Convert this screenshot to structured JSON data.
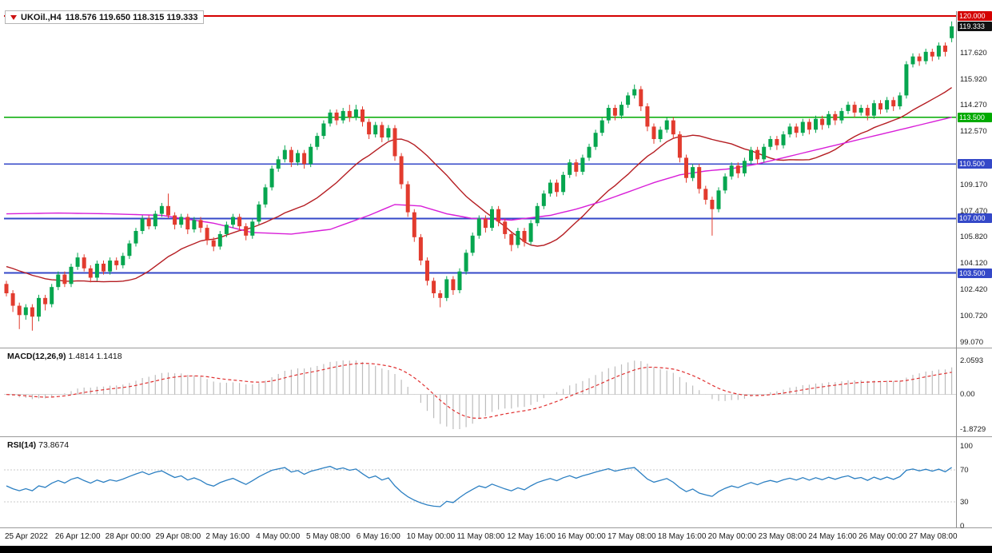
{
  "header": {
    "symbol_timeframe": "UKOil.,H4",
    "ohlc_text": "118.576 119.650 118.315 119.333"
  },
  "chart_data": {
    "type": "candlestick",
    "symbol": "UKOil.",
    "timeframe": "H4",
    "current_ohlc": {
      "open": 118.576,
      "high": 119.65,
      "low": 118.315,
      "close": 119.333
    },
    "colors": {
      "up": "#06a64f",
      "down": "#e23b2e",
      "ma_fast": "#b51d22",
      "ma_slow": "#d81ed8",
      "macd_hist": "#bdbdbd",
      "macd_signal": "#e03030",
      "rsi": "#2b7fc2",
      "level_red": "#d40000",
      "level_green": "#00aa00",
      "level_blue": "#3448c8",
      "current_tag": "#111111"
    },
    "candles": [
      [
        102.8,
        103.0,
        102.0,
        102.2
      ],
      [
        102.2,
        102.4,
        101.0,
        101.4
      ],
      [
        101.4,
        101.6,
        99.9,
        100.8
      ],
      [
        100.8,
        101.5,
        100.5,
        101.3
      ],
      [
        101.3,
        101.5,
        99.8,
        100.7
      ],
      [
        100.7,
        102.1,
        100.4,
        101.9
      ],
      [
        101.9,
        102.1,
        101.1,
        101.5
      ],
      [
        101.5,
        102.8,
        101.3,
        102.6
      ],
      [
        102.6,
        103.6,
        102.4,
        103.4
      ],
      [
        103.4,
        103.6,
        102.6,
        102.8
      ],
      [
        102.8,
        104.1,
        102.6,
        103.9
      ],
      [
        103.9,
        104.8,
        103.7,
        104.5
      ],
      [
        104.5,
        104.7,
        103.6,
        103.8
      ],
      [
        103.8,
        104.0,
        102.9,
        103.2
      ],
      [
        103.2,
        104.3,
        103.0,
        104.1
      ],
      [
        104.1,
        104.3,
        103.4,
        103.6
      ],
      [
        103.6,
        104.5,
        103.4,
        104.3
      ],
      [
        104.3,
        104.5,
        103.7,
        104.0
      ],
      [
        104.0,
        104.8,
        103.8,
        104.6
      ],
      [
        104.6,
        105.6,
        104.4,
        105.4
      ],
      [
        105.4,
        106.4,
        105.2,
        106.2
      ],
      [
        106.2,
        107.2,
        106.0,
        107.0
      ],
      [
        107.0,
        107.2,
        106.3,
        106.5
      ],
      [
        106.5,
        107.5,
        106.3,
        107.3
      ],
      [
        107.3,
        108.0,
        107.1,
        107.8
      ],
      [
        107.8,
        108.6,
        107.0,
        107.2
      ],
      [
        107.2,
        107.4,
        106.3,
        106.6
      ],
      [
        106.6,
        107.3,
        106.4,
        107.1
      ],
      [
        107.1,
        107.3,
        106.0,
        106.3
      ],
      [
        106.3,
        107.1,
        106.1,
        106.9
      ],
      [
        106.9,
        107.1,
        106.1,
        106.4
      ],
      [
        106.4,
        106.6,
        105.3,
        105.6
      ],
      [
        105.6,
        105.8,
        104.9,
        105.2
      ],
      [
        105.2,
        106.2,
        105.0,
        106.0
      ],
      [
        106.0,
        106.8,
        105.8,
        106.6
      ],
      [
        106.6,
        107.3,
        106.4,
        107.1
      ],
      [
        107.1,
        107.3,
        106.2,
        106.5
      ],
      [
        106.5,
        106.7,
        105.6,
        105.9
      ],
      [
        105.9,
        107.0,
        105.7,
        106.8
      ],
      [
        106.8,
        108.1,
        106.6,
        107.9
      ],
      [
        107.9,
        109.2,
        107.7,
        109.0
      ],
      [
        109.0,
        110.4,
        108.8,
        110.2
      ],
      [
        110.2,
        111.0,
        110.0,
        110.8
      ],
      [
        110.8,
        111.7,
        110.6,
        111.4
      ],
      [
        111.4,
        111.6,
        110.3,
        110.6
      ],
      [
        110.6,
        111.4,
        110.4,
        111.2
      ],
      [
        111.2,
        111.4,
        110.2,
        110.5
      ],
      [
        110.5,
        111.8,
        110.3,
        111.6
      ],
      [
        111.6,
        112.5,
        111.4,
        112.3
      ],
      [
        112.3,
        113.3,
        112.1,
        113.1
      ],
      [
        113.1,
        114.0,
        112.9,
        113.8
      ],
      [
        113.8,
        114.0,
        113.0,
        113.3
      ],
      [
        113.3,
        114.1,
        113.1,
        113.9
      ],
      [
        113.9,
        114.3,
        113.2,
        113.5
      ],
      [
        113.5,
        114.3,
        113.3,
        114.0
      ],
      [
        114.0,
        114.2,
        112.9,
        113.2
      ],
      [
        113.2,
        113.4,
        112.1,
        112.4
      ],
      [
        112.4,
        113.2,
        112.2,
        113.0
      ],
      [
        113.0,
        113.2,
        111.9,
        112.2
      ],
      [
        112.2,
        113.0,
        112.0,
        112.8
      ],
      [
        112.8,
        113.0,
        110.7,
        111.0
      ],
      [
        111.0,
        111.2,
        108.9,
        109.2
      ],
      [
        109.2,
        109.4,
        107.1,
        107.4
      ],
      [
        107.4,
        107.6,
        105.5,
        105.8
      ],
      [
        105.8,
        106.0,
        104.0,
        104.3
      ],
      [
        104.3,
        104.5,
        102.7,
        103.0
      ],
      [
        103.0,
        103.2,
        101.9,
        102.2
      ],
      [
        102.2,
        102.4,
        101.3,
        101.9
      ],
      [
        101.9,
        103.3,
        101.7,
        103.1
      ],
      [
        103.1,
        103.3,
        102.1,
        102.4
      ],
      [
        102.4,
        103.8,
        102.2,
        103.6
      ],
      [
        103.6,
        105.0,
        103.4,
        104.8
      ],
      [
        104.8,
        106.1,
        104.6,
        105.9
      ],
      [
        105.9,
        107.2,
        105.7,
        107.0
      ],
      [
        107.0,
        107.2,
        106.1,
        106.4
      ],
      [
        106.4,
        107.8,
        106.2,
        107.6
      ],
      [
        107.6,
        107.8,
        106.5,
        106.8
      ],
      [
        106.8,
        107.0,
        105.7,
        106.0
      ],
      [
        106.0,
        106.2,
        104.9,
        105.3
      ],
      [
        105.3,
        106.4,
        105.1,
        106.2
      ],
      [
        106.2,
        106.4,
        105.2,
        105.5
      ],
      [
        105.5,
        106.9,
        105.3,
        106.7
      ],
      [
        106.7,
        108.0,
        106.5,
        107.8
      ],
      [
        107.8,
        108.8,
        107.6,
        108.6
      ],
      [
        108.6,
        109.5,
        108.4,
        109.3
      ],
      [
        109.3,
        109.5,
        108.4,
        108.7
      ],
      [
        108.7,
        110.0,
        108.5,
        109.8
      ],
      [
        109.8,
        110.8,
        109.6,
        110.6
      ],
      [
        110.6,
        110.8,
        109.7,
        110.0
      ],
      [
        110.0,
        111.1,
        109.8,
        110.9
      ],
      [
        110.9,
        111.8,
        110.7,
        111.6
      ],
      [
        111.6,
        112.7,
        111.4,
        112.5
      ],
      [
        112.5,
        113.5,
        112.3,
        113.3
      ],
      [
        113.3,
        114.3,
        113.1,
        114.1
      ],
      [
        114.1,
        114.3,
        113.3,
        113.6
      ],
      [
        113.6,
        114.5,
        113.4,
        114.3
      ],
      [
        114.3,
        115.1,
        114.1,
        114.9
      ],
      [
        114.9,
        115.6,
        114.7,
        115.3
      ],
      [
        115.3,
        115.5,
        113.9,
        114.2
      ],
      [
        114.2,
        114.4,
        112.6,
        112.9
      ],
      [
        112.9,
        113.1,
        111.8,
        112.1
      ],
      [
        112.1,
        112.9,
        111.9,
        112.7
      ],
      [
        112.7,
        113.5,
        112.5,
        113.3
      ],
      [
        113.3,
        113.5,
        112.1,
        112.4
      ],
      [
        112.4,
        112.6,
        110.6,
        110.9
      ],
      [
        110.9,
        111.1,
        109.3,
        109.6
      ],
      [
        109.6,
        110.5,
        109.4,
        110.3
      ],
      [
        110.3,
        110.5,
        108.6,
        108.9
      ],
      [
        108.9,
        109.1,
        107.9,
        108.2
      ],
      [
        108.2,
        108.4,
        105.9,
        107.6
      ],
      [
        107.6,
        109.0,
        107.4,
        108.8
      ],
      [
        108.8,
        109.9,
        108.6,
        109.7
      ],
      [
        109.7,
        110.6,
        109.5,
        110.4
      ],
      [
        110.4,
        110.6,
        109.6,
        109.9
      ],
      [
        109.9,
        110.9,
        109.7,
        110.7
      ],
      [
        110.7,
        111.6,
        110.5,
        111.4
      ],
      [
        111.4,
        111.6,
        110.5,
        110.8
      ],
      [
        110.8,
        111.8,
        110.6,
        111.6
      ],
      [
        111.6,
        112.3,
        111.4,
        112.1
      ],
      [
        112.1,
        112.3,
        111.4,
        111.7
      ],
      [
        111.7,
        112.6,
        111.5,
        112.4
      ],
      [
        112.4,
        113.1,
        112.2,
        112.9
      ],
      [
        112.9,
        113.1,
        112.2,
        112.5
      ],
      [
        112.5,
        113.4,
        112.3,
        113.2
      ],
      [
        113.2,
        113.4,
        112.4,
        112.7
      ],
      [
        112.7,
        113.6,
        112.5,
        113.4
      ],
      [
        113.4,
        113.6,
        112.7,
        113.0
      ],
      [
        113.0,
        113.9,
        112.8,
        113.7
      ],
      [
        113.7,
        113.9,
        113.0,
        113.3
      ],
      [
        113.3,
        114.1,
        113.1,
        113.9
      ],
      [
        113.9,
        114.5,
        113.7,
        114.3
      ],
      [
        114.3,
        114.5,
        113.5,
        113.8
      ],
      [
        113.8,
        114.3,
        113.6,
        114.1
      ],
      [
        114.1,
        114.3,
        113.3,
        113.6
      ],
      [
        113.6,
        114.6,
        113.4,
        114.4
      ],
      [
        114.4,
        114.6,
        113.7,
        114.0
      ],
      [
        114.0,
        114.8,
        113.8,
        114.6
      ],
      [
        114.6,
        114.8,
        113.9,
        114.2
      ],
      [
        114.2,
        115.1,
        114.0,
        114.9
      ],
      [
        114.9,
        117.1,
        114.7,
        116.9
      ],
      [
        116.9,
        117.6,
        116.7,
        117.4
      ],
      [
        117.4,
        117.6,
        116.8,
        117.1
      ],
      [
        117.1,
        117.9,
        116.9,
        117.7
      ],
      [
        117.7,
        117.9,
        117.1,
        117.4
      ],
      [
        117.4,
        118.3,
        117.2,
        118.1
      ],
      [
        118.1,
        118.3,
        117.4,
        117.7
      ],
      [
        118.576,
        119.65,
        118.315,
        119.333
      ]
    ],
    "moving_averages": [
      {
        "name": "ma-fast",
        "method": "sma",
        "period": 21,
        "prehistory": 104.0
      },
      {
        "name": "ma-slow",
        "method": "waypoints",
        "points": [
          [
            0,
            107.3
          ],
          [
            8,
            107.35
          ],
          [
            16,
            107.3
          ],
          [
            24,
            107.2
          ],
          [
            32,
            106.7
          ],
          [
            38,
            106.1
          ],
          [
            44,
            106.0
          ],
          [
            50,
            106.3
          ],
          [
            56,
            107.2
          ],
          [
            60,
            107.9
          ],
          [
            64,
            107.8
          ],
          [
            68,
            107.3
          ],
          [
            72,
            107.0
          ],
          [
            78,
            106.9
          ],
          [
            84,
            107.2
          ],
          [
            88,
            107.6
          ],
          [
            92,
            108.1
          ],
          [
            96,
            108.7
          ],
          [
            100,
            109.3
          ],
          [
            104,
            109.8
          ],
          [
            108,
            110.05
          ],
          [
            112,
            110.2
          ],
          [
            116,
            110.5
          ],
          [
            120,
            110.9
          ],
          [
            124,
            111.3
          ],
          [
            128,
            111.7
          ],
          [
            132,
            112.1
          ],
          [
            136,
            112.5
          ],
          [
            140,
            112.9
          ],
          [
            146,
            113.5
          ]
        ]
      }
    ],
    "horizontal_lines": [
      {
        "price": 120.0,
        "tag": "120.000",
        "color": "#d40000"
      },
      {
        "price": 113.5,
        "tag": "113.500",
        "color": "#00aa00"
      },
      {
        "price": 110.5,
        "tag": "110.500",
        "color": "#3448c8"
      },
      {
        "price": 107.0,
        "tag": "107.000",
        "color": "#3448c8"
      },
      {
        "price": 103.5,
        "tag": "103.500",
        "color": "#3448c8"
      }
    ],
    "current_price_tag": {
      "value": 119.333,
      "text": "119.333"
    },
    "price_axis_ticks": [
      "117.620",
      "115.920",
      "114.270",
      "112.570",
      "109.170",
      "107.470",
      "105.820",
      "104.120",
      "102.420",
      "100.720",
      "99.070"
    ],
    "time_labels": [
      "25 Apr 2022",
      "26 Apr 12:00",
      "28 Apr 00:00",
      "29 Apr 08:00",
      "2 May 16:00",
      "4 May 00:00",
      "5 May 08:00",
      "6 May 16:00",
      "10 May 00:00",
      "11 May 08:00",
      "12 May 16:00",
      "16 May 00:00",
      "17 May 08:00",
      "18 May 16:00",
      "20 May 00:00",
      "23 May 08:00",
      "24 May 16:00",
      "26 May 00:00",
      "27 May 08:00"
    ],
    "indicators": {
      "macd": {
        "label": "MACD(12,26,9)",
        "values_text": "1.4814 1.1418",
        "fast": 12,
        "slow": 26,
        "signal": 9,
        "axis_labels": {
          "max": "2.0593",
          "zero": "0.00",
          "min": "-1.8729"
        }
      },
      "rsi": {
        "label": "RSI(14)",
        "value_text": "73.8674",
        "period": 14,
        "levels": [
          70,
          30
        ],
        "axis_labels": [
          "100",
          "70",
          "30",
          "0"
        ]
      }
    }
  }
}
